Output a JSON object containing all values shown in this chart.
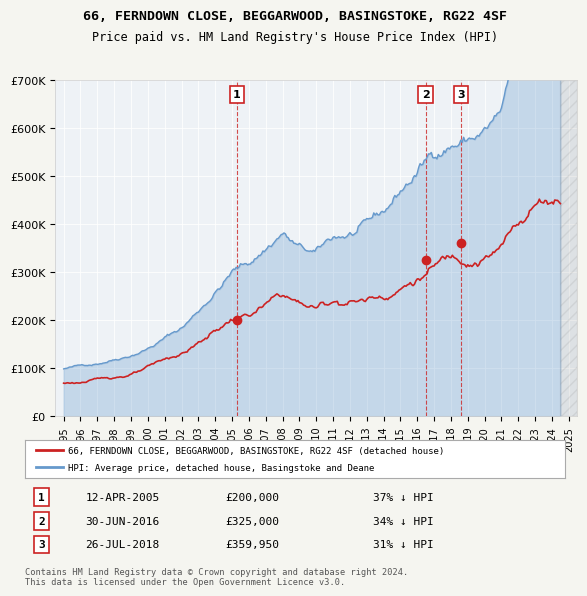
{
  "title": "66, FERNDOWN CLOSE, BEGGARWOOD, BASINGSTOKE, RG22 4SF",
  "subtitle": "Price paid vs. HM Land Registry's House Price Index (HPI)",
  "xlabel": "",
  "ylabel": "",
  "background_color": "#f0f4f8",
  "plot_bg_color": "#e8eef4",
  "hpi_color": "#6699cc",
  "price_color": "#cc2222",
  "marker_color": "#cc2222",
  "legend_label_price": "66, FERNDOWN CLOSE, BEGGARWOOD, BASINGSTOKE, RG22 4SF (detached house)",
  "legend_label_hpi": "HPI: Average price, detached house, Basingstoke and Deane",
  "sale_markers": [
    {
      "num": 1,
      "date_num": 2005.28,
      "price": 200000,
      "label": "1",
      "date_str": "12-APR-2005",
      "price_str": "£200,000",
      "hpi_str": "37% ↓ HPI"
    },
    {
      "num": 2,
      "date_num": 2016.5,
      "price": 325000,
      "label": "2",
      "date_str": "30-JUN-2016",
      "price_str": "£325,000",
      "hpi_str": "34% ↓ HPI"
    },
    {
      "num": 3,
      "date_num": 2018.58,
      "price": 359950,
      "label": "3",
      "date_str": "26-JUL-2018",
      "price_str": "£359,950",
      "hpi_str": "31% ↓ HPI"
    }
  ],
  "vline_color": "#cc2222",
  "footer": "Contains HM Land Registry data © Crown copyright and database right 2024.\nThis data is licensed under the Open Government Licence v3.0.",
  "ylim": [
    0,
    700000
  ],
  "xlim": [
    1994.5,
    2025.5
  ],
  "yticks": [
    0,
    100000,
    200000,
    300000,
    400000,
    500000,
    600000,
    700000
  ],
  "ytick_labels": [
    "£0",
    "£100K",
    "£200K",
    "£300K",
    "£400K",
    "£500K",
    "£600K",
    "£700K"
  ],
  "xticks": [
    1995,
    1996,
    1997,
    1998,
    1999,
    2000,
    2001,
    2002,
    2003,
    2004,
    2005,
    2006,
    2007,
    2008,
    2009,
    2010,
    2011,
    2012,
    2013,
    2014,
    2015,
    2016,
    2017,
    2018,
    2019,
    2020,
    2021,
    2022,
    2023,
    2024,
    2025
  ]
}
